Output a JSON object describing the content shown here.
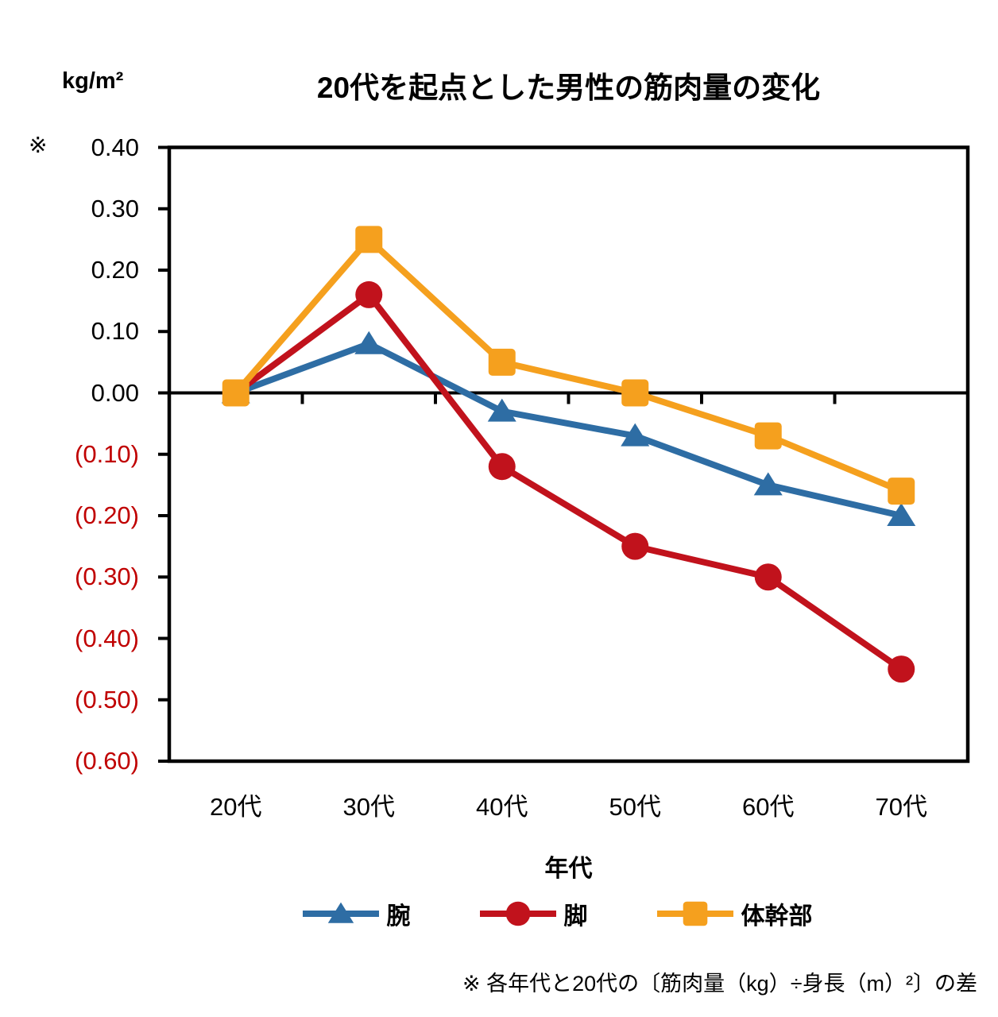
{
  "header": {
    "unit_label": "kg/m²",
    "axis_note_marker": "※"
  },
  "chart_data": {
    "type": "line",
    "title": "20代を起点とした男性の筋肉量の変化",
    "unit_label": "kg/m²",
    "xlabel": "年代",
    "ylabel": "",
    "categories": [
      "20代",
      "30代",
      "40代",
      "50代",
      "60代",
      "70代"
    ],
    "series": [
      {
        "name": "腕",
        "marker": "triangle",
        "color": "#2E6DA4",
        "values": [
          0.0,
          0.08,
          -0.03,
          -0.07,
          -0.15,
          -0.2
        ]
      },
      {
        "name": "脚",
        "marker": "circle",
        "color": "#C1121C",
        "values": [
          0.0,
          0.16,
          -0.12,
          -0.25,
          -0.3,
          -0.45
        ]
      },
      {
        "name": "体幹部",
        "marker": "square",
        "color": "#F5A01E",
        "values": [
          0.0,
          0.25,
          0.05,
          0.0,
          -0.07,
          -0.16
        ]
      }
    ],
    "ylim": [
      -0.6,
      0.4
    ],
    "y_ticks": [
      {
        "value": 0.4,
        "label": "0.40",
        "color": "#000000"
      },
      {
        "value": 0.3,
        "label": "0.30",
        "color": "#000000"
      },
      {
        "value": 0.2,
        "label": "0.20",
        "color": "#000000"
      },
      {
        "value": 0.1,
        "label": "0.10",
        "color": "#000000"
      },
      {
        "value": 0.0,
        "label": "0.00",
        "color": "#000000"
      },
      {
        "value": -0.1,
        "label": "(0.10)",
        "color": "#C00000"
      },
      {
        "value": -0.2,
        "label": "(0.20)",
        "color": "#C00000"
      },
      {
        "value": -0.3,
        "label": "(0.30)",
        "color": "#C00000"
      },
      {
        "value": -0.4,
        "label": "(0.40)",
        "color": "#C00000"
      },
      {
        "value": -0.5,
        "label": "(0.50)",
        "color": "#C00000"
      },
      {
        "value": -0.6,
        "label": "(0.60)",
        "color": "#C00000"
      }
    ],
    "grid": false,
    "legend_position": "bottom",
    "axis_color": "#000000"
  },
  "footnote": {
    "text": "※ 各年代と20代の〔筋肉量（kg）÷身長（m）²〕の差"
  }
}
